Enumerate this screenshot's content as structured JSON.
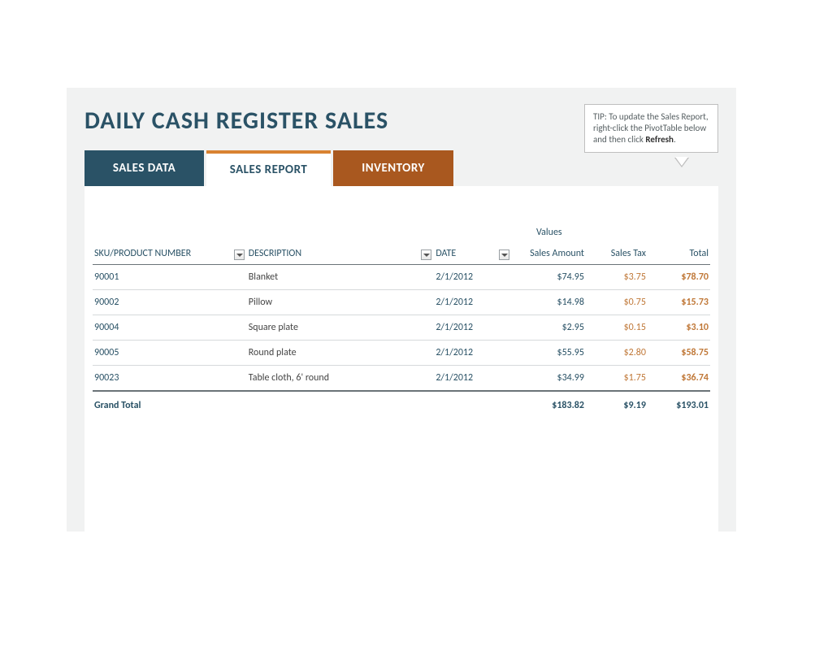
{
  "title": "DAILY CASH REGISTER SALES",
  "tip": {
    "prefix": "TIP: To update the Sales Report, right-click the PivotTable below and then click ",
    "bold": "Refresh",
    "suffix": "."
  },
  "tabs": {
    "sales_data": "SALES DATA",
    "sales_report": "SALES REPORT",
    "inventory": "INVENTORY"
  },
  "table": {
    "values_label": "Values",
    "columns": {
      "sku": "SKU/PRODUCT NUMBER",
      "description": "DESCRIPTION",
      "date": "DATE",
      "sales_amount": "Sales Amount",
      "sales_tax": "Sales Tax",
      "total": "Total"
    },
    "rows": [
      {
        "sku": "90001",
        "description": "Blanket",
        "date": "2/1/2012",
        "sales_amount": "$74.95",
        "sales_tax": "$3.75",
        "total": "$78.70"
      },
      {
        "sku": "90002",
        "description": "Pillow",
        "date": "2/1/2012",
        "sales_amount": "$14.98",
        "sales_tax": "$0.75",
        "total": "$15.73"
      },
      {
        "sku": "90004",
        "description": "Square plate",
        "date": "2/1/2012",
        "sales_amount": "$2.95",
        "sales_tax": "$0.15",
        "total": "$3.10"
      },
      {
        "sku": "90005",
        "description": "Round plate",
        "date": "2/1/2012",
        "sales_amount": "$55.95",
        "sales_tax": "$2.80",
        "total": "$58.75"
      },
      {
        "sku": "90023",
        "description": "Table cloth, 6' round",
        "date": "2/1/2012",
        "sales_amount": "$34.99",
        "sales_tax": "$1.75",
        "total": "$36.74"
      }
    ],
    "grand_total": {
      "label": "Grand Total",
      "sales_amount": "$183.82",
      "sales_tax": "$9.19",
      "total": "$193.01"
    }
  },
  "colors": {
    "title": "#2a5266",
    "tab_active_bg": "#ffffff",
    "tab_active_border": "#d98231",
    "tab_data_bg": "#2a5266",
    "tab_inventory_bg": "#a9581f",
    "panel_bg": "#f1f2f2",
    "highlight": "#c07838"
  }
}
